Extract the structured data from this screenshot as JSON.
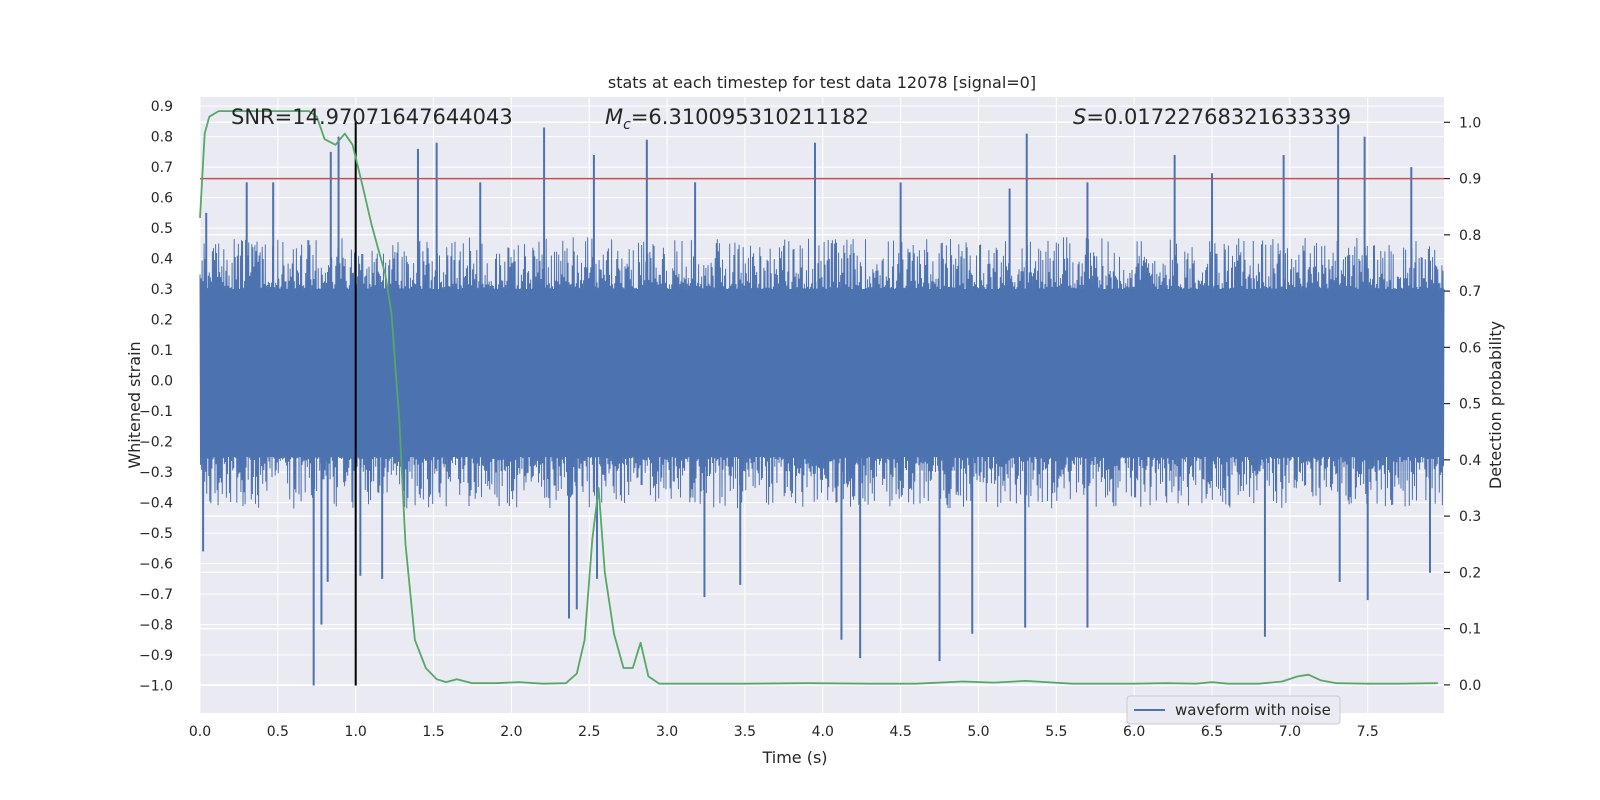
{
  "chart_data": {
    "type": "line",
    "title": "stats at each timestep for test data 12078 [signal=0]",
    "xlabel": "Time (s)",
    "ylabel_left": "Whitened strain",
    "ylabel_right": "Detection probability",
    "xlim": [
      0.0,
      7.99
    ],
    "ylim_left": [
      -1.09,
      0.93
    ],
    "ylim_right": [
      -0.05,
      1.045
    ],
    "x_ticks": [
      "0.0",
      "0.5",
      "1.0",
      "1.5",
      "2.0",
      "2.5",
      "3.0",
      "3.5",
      "4.0",
      "4.5",
      "5.0",
      "5.5",
      "6.0",
      "6.5",
      "7.0",
      "7.5"
    ],
    "y_ticks_left": [
      "0.9",
      "0.8",
      "0.7",
      "0.6",
      "0.5",
      "0.4",
      "0.3",
      "0.2",
      "0.1",
      "0.0",
      "−0.1",
      "−0.2",
      "−0.3",
      "−0.4",
      "−0.5",
      "−0.6",
      "−0.7",
      "−0.8",
      "−0.9",
      "−1.0"
    ],
    "y_ticks_right": [
      "1.0",
      "0.9",
      "0.8",
      "0.7",
      "0.6",
      "0.5",
      "0.4",
      "0.3",
      "0.2",
      "0.1",
      "0.0"
    ],
    "grid": true,
    "legend": {
      "position": "lower-right",
      "entries": [
        "waveform with noise"
      ]
    },
    "annotations": {
      "snr": "SNR=14.97071647644043",
      "mc_symbol": "M",
      "mc_sub": "c",
      "mc_value": "=6.310095310211182",
      "s_symbol": "S",
      "s_value": "=0.01722768321633339"
    },
    "series": [
      {
        "name": "waveform with noise",
        "axis": "left",
        "color": "#4c72b0",
        "band": {
          "dense_min": -0.25,
          "dense_max": 0.3,
          "typical_min": -0.42,
          "typical_max": 0.47
        },
        "peaks": [
          {
            "x": 0.04,
            "y": 0.55
          },
          {
            "x": 0.3,
            "y": 0.65
          },
          {
            "x": 0.47,
            "y": 0.65
          },
          {
            "x": 0.84,
            "y": 0.75
          },
          {
            "x": 0.89,
            "y": 0.8
          },
          {
            "x": 1.4,
            "y": 0.76
          },
          {
            "x": 1.52,
            "y": 0.78
          },
          {
            "x": 1.8,
            "y": 0.65
          },
          {
            "x": 2.21,
            "y": 0.83
          },
          {
            "x": 2.53,
            "y": 0.74
          },
          {
            "x": 2.87,
            "y": 0.79
          },
          {
            "x": 3.18,
            "y": 0.65
          },
          {
            "x": 3.95,
            "y": 0.78
          },
          {
            "x": 4.5,
            "y": 0.65
          },
          {
            "x": 5.2,
            "y": 0.63
          },
          {
            "x": 5.31,
            "y": 0.81
          },
          {
            "x": 5.7,
            "y": 0.65
          },
          {
            "x": 6.26,
            "y": 0.74
          },
          {
            "x": 6.5,
            "y": 0.68
          },
          {
            "x": 6.96,
            "y": 0.74
          },
          {
            "x": 7.31,
            "y": 0.84
          },
          {
            "x": 7.48,
            "y": 0.8
          },
          {
            "x": 7.78,
            "y": 0.7
          }
        ],
        "troughs": [
          {
            "x": 0.02,
            "y": -0.56
          },
          {
            "x": 0.73,
            "y": -1.0
          },
          {
            "x": 0.78,
            "y": -0.8
          },
          {
            "x": 0.82,
            "y": -0.66
          },
          {
            "x": 1.03,
            "y": -0.64
          },
          {
            "x": 1.17,
            "y": -0.65
          },
          {
            "x": 2.37,
            "y": -0.78
          },
          {
            "x": 2.42,
            "y": -0.75
          },
          {
            "x": 2.55,
            "y": -0.65
          },
          {
            "x": 3.24,
            "y": -0.71
          },
          {
            "x": 3.47,
            "y": -0.67
          },
          {
            "x": 4.12,
            "y": -0.85
          },
          {
            "x": 4.24,
            "y": -0.91
          },
          {
            "x": 4.75,
            "y": -0.92
          },
          {
            "x": 4.96,
            "y": -0.83
          },
          {
            "x": 5.3,
            "y": -0.81
          },
          {
            "x": 5.7,
            "y": -0.81
          },
          {
            "x": 6.84,
            "y": -0.84
          },
          {
            "x": 7.32,
            "y": -0.66
          },
          {
            "x": 7.5,
            "y": -0.72
          },
          {
            "x": 7.9,
            "y": -0.63
          }
        ]
      },
      {
        "name": "",
        "axis": "right",
        "color": "#55a868",
        "x": [
          0.0,
          0.03,
          0.06,
          0.12,
          0.2,
          0.4,
          0.6,
          0.7,
          0.75,
          0.8,
          0.87,
          0.93,
          0.98,
          1.05,
          1.1,
          1.15,
          1.19,
          1.23,
          1.28,
          1.32,
          1.38,
          1.45,
          1.52,
          1.58,
          1.65,
          1.75,
          1.9,
          2.05,
          2.2,
          2.35,
          2.42,
          2.47,
          2.52,
          2.56,
          2.6,
          2.66,
          2.72,
          2.78,
          2.83,
          2.88,
          2.95,
          3.1,
          3.5,
          3.9,
          4.3,
          4.6,
          4.9,
          5.1,
          5.3,
          5.6,
          6.0,
          6.2,
          6.4,
          6.5,
          6.6,
          6.8,
          6.95,
          7.05,
          7.12,
          7.2,
          7.3,
          7.5,
          7.7,
          7.95
        ],
        "y": [
          0.83,
          0.98,
          1.01,
          1.02,
          1.02,
          1.02,
          1.02,
          1.02,
          1.01,
          0.97,
          0.96,
          0.98,
          0.96,
          0.88,
          0.82,
          0.77,
          0.73,
          0.66,
          0.47,
          0.25,
          0.08,
          0.03,
          0.01,
          0.005,
          0.01,
          0.003,
          0.003,
          0.005,
          0.002,
          0.003,
          0.02,
          0.08,
          0.26,
          0.35,
          0.2,
          0.09,
          0.03,
          0.03,
          0.075,
          0.015,
          0.002,
          0.002,
          0.002,
          0.003,
          0.002,
          0.002,
          0.006,
          0.004,
          0.007,
          0.002,
          0.002,
          0.003,
          0.002,
          0.005,
          0.002,
          0.002,
          0.006,
          0.015,
          0.018,
          0.008,
          0.003,
          0.002,
          0.002,
          0.003
        ]
      }
    ],
    "hlines": [
      {
        "axis": "right",
        "y": 0.9,
        "color": "#c44e52"
      }
    ],
    "vlines": [
      {
        "x": 1.0,
        "y_from": -1.0,
        "y_to": 0.85,
        "color": "#000000"
      }
    ]
  }
}
